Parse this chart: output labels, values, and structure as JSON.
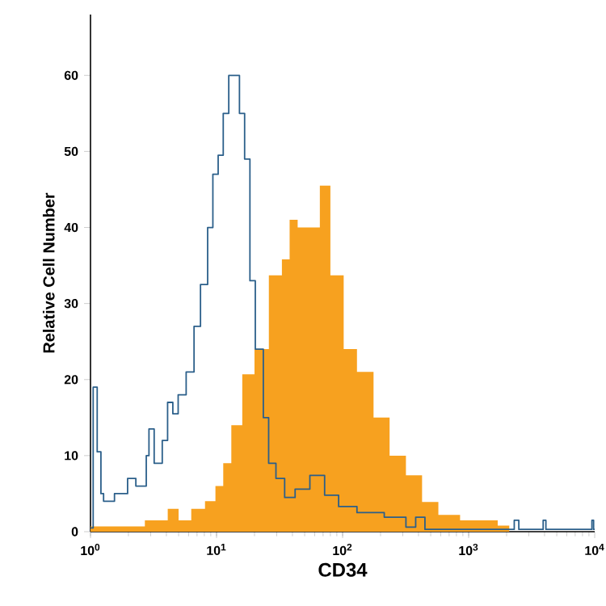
{
  "chart_data": {
    "type": "step",
    "xlabel": "CD34",
    "ylabel": "Relative Cell Number",
    "log": "x",
    "xlim": [
      1,
      10000
    ],
    "ylim": [
      0,
      68
    ],
    "xticks": [
      {
        "value": 1,
        "label": "10$^{0}$"
      },
      {
        "value": 10,
        "label": "10$^{1}$"
      },
      {
        "value": 100,
        "label": "10$^{2}$"
      },
      {
        "value": 1000,
        "label": "10$^{3}$"
      },
      {
        "value": 10000,
        "label": "10$^{4}$"
      }
    ],
    "yticks": [
      0,
      10,
      20,
      30,
      40,
      50,
      60
    ],
    "series": [
      {
        "type": "area",
        "color": "#f7a11f",
        "x": [
          1,
          2.7,
          3.2,
          4.1,
          5,
          6.3,
          8.1,
          9.8,
          11.3,
          13.1,
          16,
          20,
          26,
          33,
          38,
          44,
          66,
          80,
          102,
          130,
          176,
          236,
          318,
          427,
          575,
          855,
          1700,
          2100,
          10000
        ],
        "values": [
          0.7,
          1.5,
          1.5,
          3,
          1.5,
          3,
          4,
          6,
          9,
          14,
          20.7,
          24,
          33.7,
          35.8,
          41,
          40,
          45.5,
          33.7,
          24,
          21,
          15,
          10,
          7.4,
          3.9,
          2.2,
          1.5,
          0.8,
          0,
          0
        ]
      },
      {
        "color": "#2b5f8a",
        "x": [
          1,
          1.05,
          1.13,
          1.21,
          1.27,
          1.55,
          1.97,
          2.29,
          2.77,
          2.91,
          3.2,
          3.71,
          4.09,
          4.5,
          4.96,
          5.74,
          6.63,
          7.46,
          8.5,
          9.35,
          10.3,
          11.3,
          12.5,
          13.8,
          15.2,
          16.7,
          18.4,
          20.3,
          23.5,
          25.9,
          29.6,
          34.7,
          42,
          55,
          72,
          93,
          130,
          214,
          318,
          380,
          450,
          2300,
          2500,
          3900,
          4100,
          9500,
          9800,
          10000
        ],
        "values": [
          0.5,
          19,
          10.5,
          5,
          4,
          5,
          7,
          6,
          10,
          13.5,
          9,
          12,
          17,
          15.5,
          18,
          21,
          27,
          32.5,
          40,
          47,
          49.5,
          55,
          60,
          60,
          55,
          49,
          33,
          24,
          15,
          9,
          7,
          4.5,
          5.6,
          7.4,
          4.8,
          3.3,
          2.5,
          1.9,
          0.6,
          1.9,
          0.3,
          1.5,
          0.3,
          1.5,
          0.3,
          1.5,
          0.3,
          0.3
        ]
      }
    ]
  }
}
